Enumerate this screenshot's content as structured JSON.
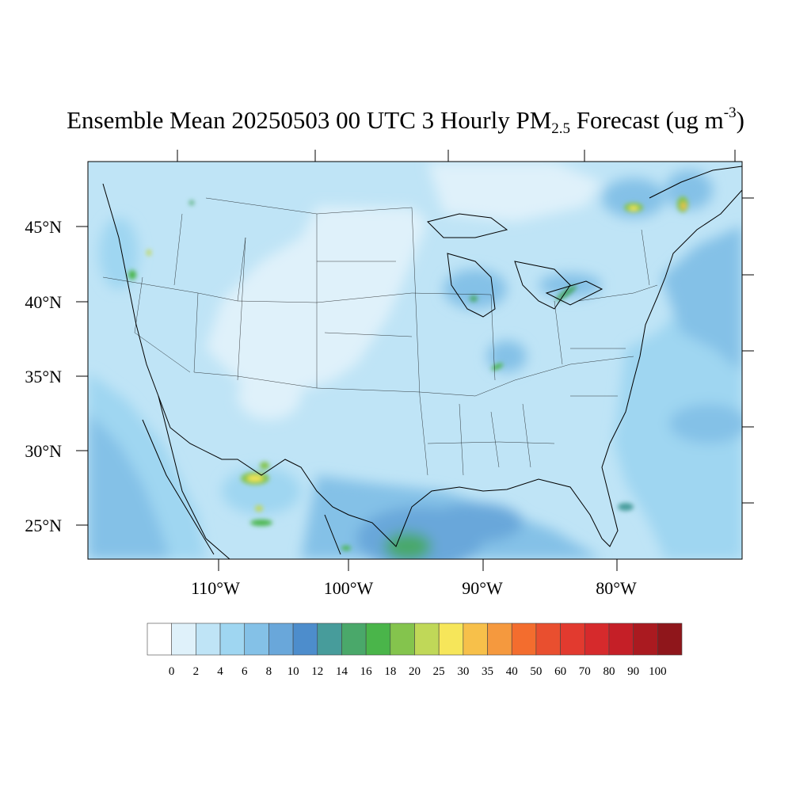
{
  "title": {
    "prefix": "Ensemble Mean 20250503 00 UTC 3 Hourly PM",
    "subscript": "2.5",
    "middle": " Forecast (ug m",
    "superscript": "-3",
    "suffix": ")"
  },
  "lat_labels": [
    "45°N",
    "40°N",
    "35°N",
    "30°N",
    "25°N"
  ],
  "lon_labels": [
    "110°W",
    "100°W",
    "90°W",
    "80°W"
  ],
  "colorbar": {
    "labels": [
      "0",
      "2",
      "4",
      "6",
      "8",
      "10",
      "12",
      "14",
      "16",
      "18",
      "20",
      "25",
      "30",
      "35",
      "40",
      "50",
      "60",
      "70",
      "80",
      "90",
      "100"
    ],
    "colors": [
      "#ffffff",
      "#dff1fa",
      "#bfe4f6",
      "#9fd6f1",
      "#84c1e7",
      "#69a7da",
      "#4d8dcc",
      "#479c9b",
      "#4aa86a",
      "#4ab54a",
      "#84c44d",
      "#c0d858",
      "#f6e65a",
      "#f7c04a",
      "#f5993e",
      "#f36d2e",
      "#e94f2f",
      "#e23a2f",
      "#d62a2c",
      "#c51f27",
      "#aa1a20",
      "#8f161b"
    ]
  },
  "map": {
    "projection": "Lambert Conformal",
    "region": "Contiguous United States",
    "field": "PM2.5",
    "background_level_color": "#bfe4f6"
  }
}
